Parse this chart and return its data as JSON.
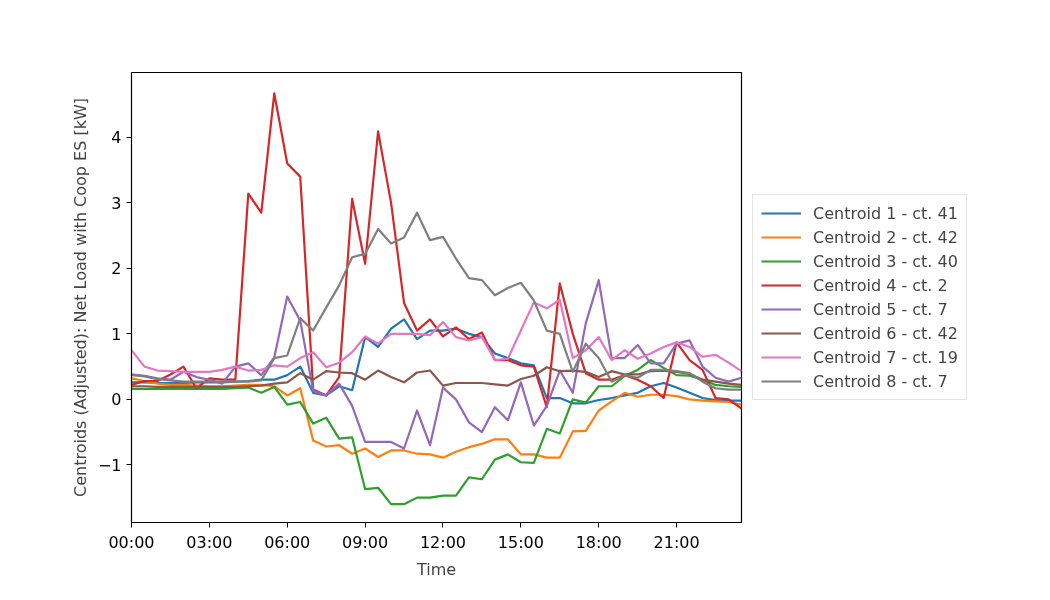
{
  "chart_data": {
    "type": "line",
    "xlabel": "Time",
    "ylabel": "Centroids (Adjusted): Net Load with Coop ES [kW]",
    "x": [
      0,
      0.5,
      1,
      1.5,
      2,
      2.5,
      3,
      3.5,
      4,
      4.5,
      5,
      5.5,
      6,
      6.5,
      7,
      7.5,
      8,
      8.5,
      9,
      9.5,
      10,
      10.5,
      11,
      11.5,
      12,
      12.5,
      13,
      13.5,
      14,
      14.5,
      15,
      15.5,
      16,
      16.5,
      17,
      17.5,
      18,
      18.5,
      19,
      19.5,
      20,
      20.5,
      21,
      21.5,
      22,
      22.5,
      23,
      23.5
    ],
    "xlim": [
      0,
      23.5
    ],
    "xticks": [
      {
        "value": 0,
        "label": "00:00"
      },
      {
        "value": 3,
        "label": "03:00"
      },
      {
        "value": 6,
        "label": "06:00"
      },
      {
        "value": 9,
        "label": "09:00"
      },
      {
        "value": 12,
        "label": "12:00"
      },
      {
        "value": 15,
        "label": "15:00"
      },
      {
        "value": 18,
        "label": "18:00"
      },
      {
        "value": 21,
        "label": "21:00"
      }
    ],
    "ylim": [
      -1.88,
      4.99
    ],
    "yticks": [
      {
        "value": -1,
        "label": "−1"
      },
      0,
      1,
      2,
      3,
      4
    ],
    "grid": false,
    "legend": "right",
    "line_style": "solid",
    "series": [
      {
        "name": "Centroid 1 - ct. 41",
        "color": "#1f77b4",
        "values": [
          0.26,
          0.26,
          0.25,
          0.25,
          0.25,
          0.26,
          0.26,
          0.26,
          0.27,
          0.28,
          0.3,
          0.3,
          0.37,
          0.5,
          0.1,
          0.06,
          0.2,
          0.14,
          0.95,
          0.8,
          1.08,
          1.22,
          0.92,
          1.05,
          1.05,
          1.08,
          1.0,
          0.95,
          0.7,
          0.63,
          0.55,
          0.52,
          0.02,
          0.02,
          -0.06,
          -0.06,
          -0.01,
          0.02,
          0.06,
          0.1,
          0.2,
          0.25,
          0.18,
          0.1,
          0.02,
          -0.01,
          -0.02,
          -0.02
        ]
      },
      {
        "name": "Centroid 2 - ct. 42",
        "color": "#ff7f0e",
        "values": [
          0.32,
          0.28,
          0.24,
          0.22,
          0.22,
          0.21,
          0.2,
          0.2,
          0.21,
          0.22,
          0.22,
          0.2,
          0.06,
          0.17,
          -0.63,
          -0.72,
          -0.7,
          -0.83,
          -0.75,
          -0.88,
          -0.78,
          -0.78,
          -0.83,
          -0.84,
          -0.89,
          -0.8,
          -0.73,
          -0.68,
          -0.61,
          -0.61,
          -0.84,
          -0.84,
          -0.89,
          -0.89,
          -0.49,
          -0.48,
          -0.17,
          -0.03,
          0.1,
          0.04,
          0.07,
          0.07,
          0.05,
          0.0,
          -0.02,
          -0.03,
          -0.04,
          -0.08
        ]
      },
      {
        "name": "Centroid 3 - ct. 40",
        "color": "#2ca02c",
        "values": [
          0.16,
          0.16,
          0.16,
          0.16,
          0.16,
          0.16,
          0.16,
          0.16,
          0.17,
          0.18,
          0.1,
          0.19,
          -0.08,
          -0.04,
          -0.37,
          -0.28,
          -0.6,
          -0.58,
          -1.37,
          -1.35,
          -1.6,
          -1.6,
          -1.5,
          -1.5,
          -1.47,
          -1.47,
          -1.19,
          -1.22,
          -0.92,
          -0.84,
          -0.96,
          -0.97,
          -0.45,
          -0.52,
          0.0,
          -0.05,
          0.2,
          0.2,
          0.36,
          0.45,
          0.6,
          0.48,
          0.37,
          0.36,
          0.3,
          0.22,
          0.2,
          0.19
        ]
      },
      {
        "name": "Centroid 4 - ct. 2",
        "color": "#d62728",
        "values": [
          0.22,
          0.28,
          0.28,
          0.38,
          0.5,
          0.17,
          0.32,
          0.3,
          0.3,
          3.14,
          2.85,
          4.67,
          3.6,
          3.4,
          0.15,
          0.06,
          0.34,
          3.06,
          2.07,
          4.09,
          3.0,
          1.47,
          1.05,
          1.22,
          0.96,
          1.1,
          0.92,
          1.02,
          0.6,
          0.6,
          0.52,
          0.5,
          -0.12,
          1.77,
          1.0,
          0.4,
          0.3,
          0.3,
          0.37,
          0.3,
          0.2,
          0.02,
          0.87,
          0.6,
          0.45,
          0.02,
          0.0,
          -0.14
        ]
      },
      {
        "name": "Centroid 5 - ct. 7",
        "color": "#9467bd",
        "values": [
          0.38,
          0.36,
          0.32,
          0.3,
          0.42,
          0.34,
          0.3,
          0.24,
          0.5,
          0.55,
          0.37,
          0.64,
          1.57,
          1.2,
          0.13,
          0.06,
          0.24,
          -0.1,
          -0.65,
          -0.65,
          -0.65,
          -0.75,
          -0.17,
          -0.7,
          0.18,
          0.0,
          -0.35,
          -0.5,
          -0.12,
          -0.32,
          0.26,
          -0.4,
          -0.1,
          0.44,
          0.1,
          1.16,
          1.82,
          0.63,
          0.63,
          0.83,
          0.55,
          0.55,
          0.85,
          0.9,
          0.5,
          0.33,
          0.27,
          0.33
        ]
      },
      {
        "name": "Centroid 6 - ct. 42",
        "color": "#8c564b",
        "values": [
          0.2,
          0.2,
          0.19,
          0.19,
          0.19,
          0.19,
          0.19,
          0.19,
          0.19,
          0.2,
          0.21,
          0.24,
          0.26,
          0.4,
          0.3,
          0.43,
          0.41,
          0.4,
          0.3,
          0.44,
          0.34,
          0.26,
          0.41,
          0.44,
          0.21,
          0.25,
          0.25,
          0.25,
          0.23,
          0.21,
          0.31,
          0.36,
          0.49,
          0.43,
          0.44,
          0.42,
          0.34,
          0.43,
          0.38,
          0.38,
          0.43,
          0.44,
          0.42,
          0.39,
          0.3,
          0.27,
          0.24,
          0.22
        ]
      },
      {
        "name": "Centroid 7 - ct. 19",
        "color": "#e377c2",
        "values": [
          0.75,
          0.5,
          0.44,
          0.43,
          0.42,
          0.42,
          0.42,
          0.45,
          0.5,
          0.44,
          0.45,
          0.52,
          0.5,
          0.63,
          0.72,
          0.49,
          0.56,
          0.72,
          0.96,
          0.85,
          1.0,
          1.0,
          1.0,
          0.98,
          1.18,
          0.95,
          0.9,
          0.95,
          0.6,
          0.62,
          1.05,
          1.48,
          1.39,
          1.52,
          0.63,
          0.75,
          0.95,
          0.6,
          0.75,
          0.62,
          0.7,
          0.8,
          0.87,
          0.8,
          0.65,
          0.68,
          0.56,
          0.43
        ]
      },
      {
        "name": "Centroid 8 - ct. 7",
        "color": "#7f7f7f",
        "values": [
          0.37,
          0.35,
          0.31,
          0.29,
          0.27,
          0.27,
          0.27,
          0.27,
          0.27,
          0.27,
          0.29,
          0.63,
          0.67,
          1.24,
          1.05,
          1.4,
          1.74,
          2.17,
          2.22,
          2.6,
          2.38,
          2.47,
          2.85,
          2.43,
          2.48,
          2.15,
          1.85,
          1.82,
          1.59,
          1.7,
          1.78,
          1.51,
          1.05,
          1.0,
          0.42,
          0.85,
          0.63,
          0.27,
          0.37,
          0.33,
          0.45,
          0.45,
          0.43,
          0.4,
          0.27,
          0.17,
          0.15,
          0.15
        ]
      }
    ]
  }
}
